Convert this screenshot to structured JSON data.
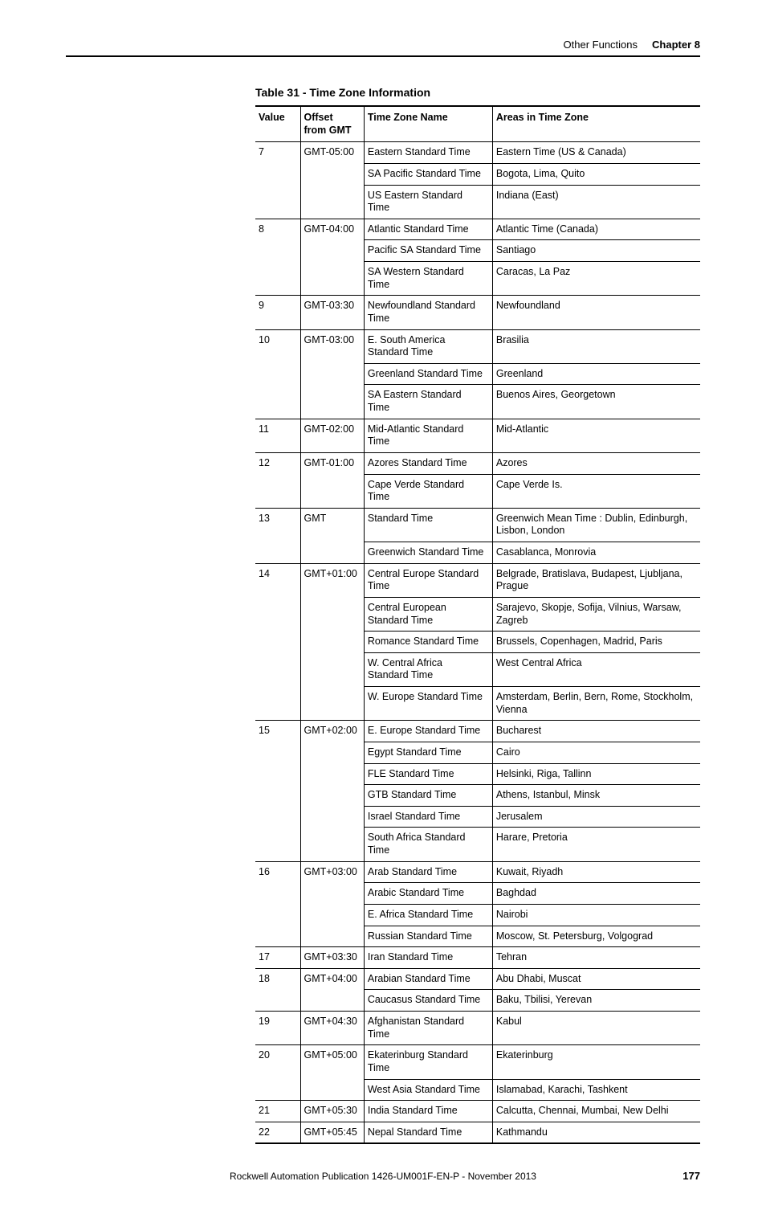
{
  "header": {
    "section": "Other Functions",
    "chapter": "Chapter 8"
  },
  "table": {
    "caption": "Table 31 - Time Zone Information",
    "columns": [
      "Value",
      "Offset from GMT",
      "Time Zone Name",
      "Areas in Time Zone"
    ],
    "groups": [
      {
        "value": "7",
        "offset": "GMT-05:00",
        "rows": [
          {
            "name": "Eastern Standard Time",
            "areas": "Eastern Time (US & Canada)"
          },
          {
            "name": "SA Pacific Standard Time",
            "areas": "Bogota, Lima, Quito"
          },
          {
            "name": "US Eastern Standard Time",
            "areas": "Indiana (East)"
          }
        ]
      },
      {
        "value": "8",
        "offset": "GMT-04:00",
        "rows": [
          {
            "name": "Atlantic Standard Time",
            "areas": "Atlantic Time (Canada)"
          },
          {
            "name": "Pacific SA Standard Time",
            "areas": "Santiago"
          },
          {
            "name": "SA Western Standard Time",
            "areas": "Caracas, La Paz"
          }
        ]
      },
      {
        "value": "9",
        "offset": "GMT-03:30",
        "rows": [
          {
            "name": "Newfoundland Standard Time",
            "areas": "Newfoundland"
          }
        ]
      },
      {
        "value": "10",
        "offset": "GMT-03:00",
        "rows": [
          {
            "name": "E. South America Standard Time",
            "areas": "Brasilia"
          },
          {
            "name": "Greenland Standard Time",
            "areas": "Greenland"
          },
          {
            "name": "SA Eastern Standard Time",
            "areas": "Buenos Aires, Georgetown"
          }
        ]
      },
      {
        "value": "11",
        "offset": "GMT-02:00",
        "rows": [
          {
            "name": "Mid-Atlantic Standard Time",
            "areas": "Mid-Atlantic"
          }
        ]
      },
      {
        "value": "12",
        "offset": "GMT-01:00",
        "rows": [
          {
            "name": "Azores Standard Time",
            "areas": "Azores"
          },
          {
            "name": "Cape Verde Standard Time",
            "areas": "Cape Verde Is."
          }
        ]
      },
      {
        "value": "13",
        "offset": "GMT",
        "rows": [
          {
            "name": "Standard Time",
            "areas": "Greenwich Mean Time : Dublin, Edinburgh, Lisbon, London"
          },
          {
            "name": "Greenwich Standard Time",
            "areas": "Casablanca, Monrovia"
          }
        ]
      },
      {
        "value": "14",
        "offset": "GMT+01:00",
        "rows": [
          {
            "name": "Central Europe Standard Time",
            "areas": "Belgrade, Bratislava, Budapest, Ljubljana, Prague"
          },
          {
            "name": "Central European Standard Time",
            "areas": "Sarajevo, Skopje, Sofija, Vilnius, Warsaw, Zagreb"
          },
          {
            "name": "Romance Standard Time",
            "areas": "Brussels, Copenhagen, Madrid, Paris"
          },
          {
            "name": "W. Central Africa Standard Time",
            "areas": "West Central Africa"
          },
          {
            "name": "W. Europe Standard Time",
            "areas": "Amsterdam, Berlin, Bern, Rome, Stockholm, Vienna"
          }
        ]
      },
      {
        "value": "15",
        "offset": "GMT+02:00",
        "rows": [
          {
            "name": "E. Europe Standard Time",
            "areas": "Bucharest"
          },
          {
            "name": "Egypt Standard Time",
            "areas": "Cairo"
          },
          {
            "name": "FLE Standard Time",
            "areas": "Helsinki, Riga, Tallinn"
          },
          {
            "name": "GTB Standard Time",
            "areas": "Athens, Istanbul, Minsk"
          },
          {
            "name": "Israel Standard Time",
            "areas": "Jerusalem"
          },
          {
            "name": "South Africa Standard Time",
            "areas": "Harare, Pretoria"
          }
        ]
      },
      {
        "value": "16",
        "offset": "GMT+03:00",
        "rows": [
          {
            "name": "Arab Standard Time",
            "areas": "Kuwait, Riyadh"
          },
          {
            "name": "Arabic Standard Time",
            "areas": "Baghdad"
          },
          {
            "name": "E. Africa Standard Time",
            "areas": "Nairobi"
          },
          {
            "name": "Russian Standard Time",
            "areas": "Moscow, St. Petersburg, Volgograd"
          }
        ]
      },
      {
        "value": "17",
        "offset": "GMT+03:30",
        "rows": [
          {
            "name": "Iran Standard Time",
            "areas": "Tehran"
          }
        ]
      },
      {
        "value": "18",
        "offset": "GMT+04:00",
        "rows": [
          {
            "name": "Arabian Standard Time",
            "areas": "Abu Dhabi, Muscat"
          },
          {
            "name": "Caucasus Standard Time",
            "areas": "Baku, Tbilisi, Yerevan"
          }
        ]
      },
      {
        "value": "19",
        "offset": "GMT+04:30",
        "rows": [
          {
            "name": "Afghanistan Standard Time",
            "areas": "Kabul"
          }
        ]
      },
      {
        "value": "20",
        "offset": "GMT+05:00",
        "rows": [
          {
            "name": "Ekaterinburg Standard Time",
            "areas": "Ekaterinburg"
          },
          {
            "name": "West Asia Standard Time",
            "areas": "Islamabad, Karachi, Tashkent"
          }
        ]
      },
      {
        "value": "21",
        "offset": "GMT+05:30",
        "rows": [
          {
            "name": "India Standard Time",
            "areas": "Calcutta, Chennai, Mumbai, New Delhi"
          }
        ]
      },
      {
        "value": "22",
        "offset": "GMT+05:45",
        "rows": [
          {
            "name": "Nepal Standard Time",
            "areas": "Kathmandu"
          }
        ]
      }
    ]
  },
  "footer": {
    "publication": "Rockwell Automation Publication 1426-UM001F-EN-P - November 2013",
    "page_number": "177"
  }
}
